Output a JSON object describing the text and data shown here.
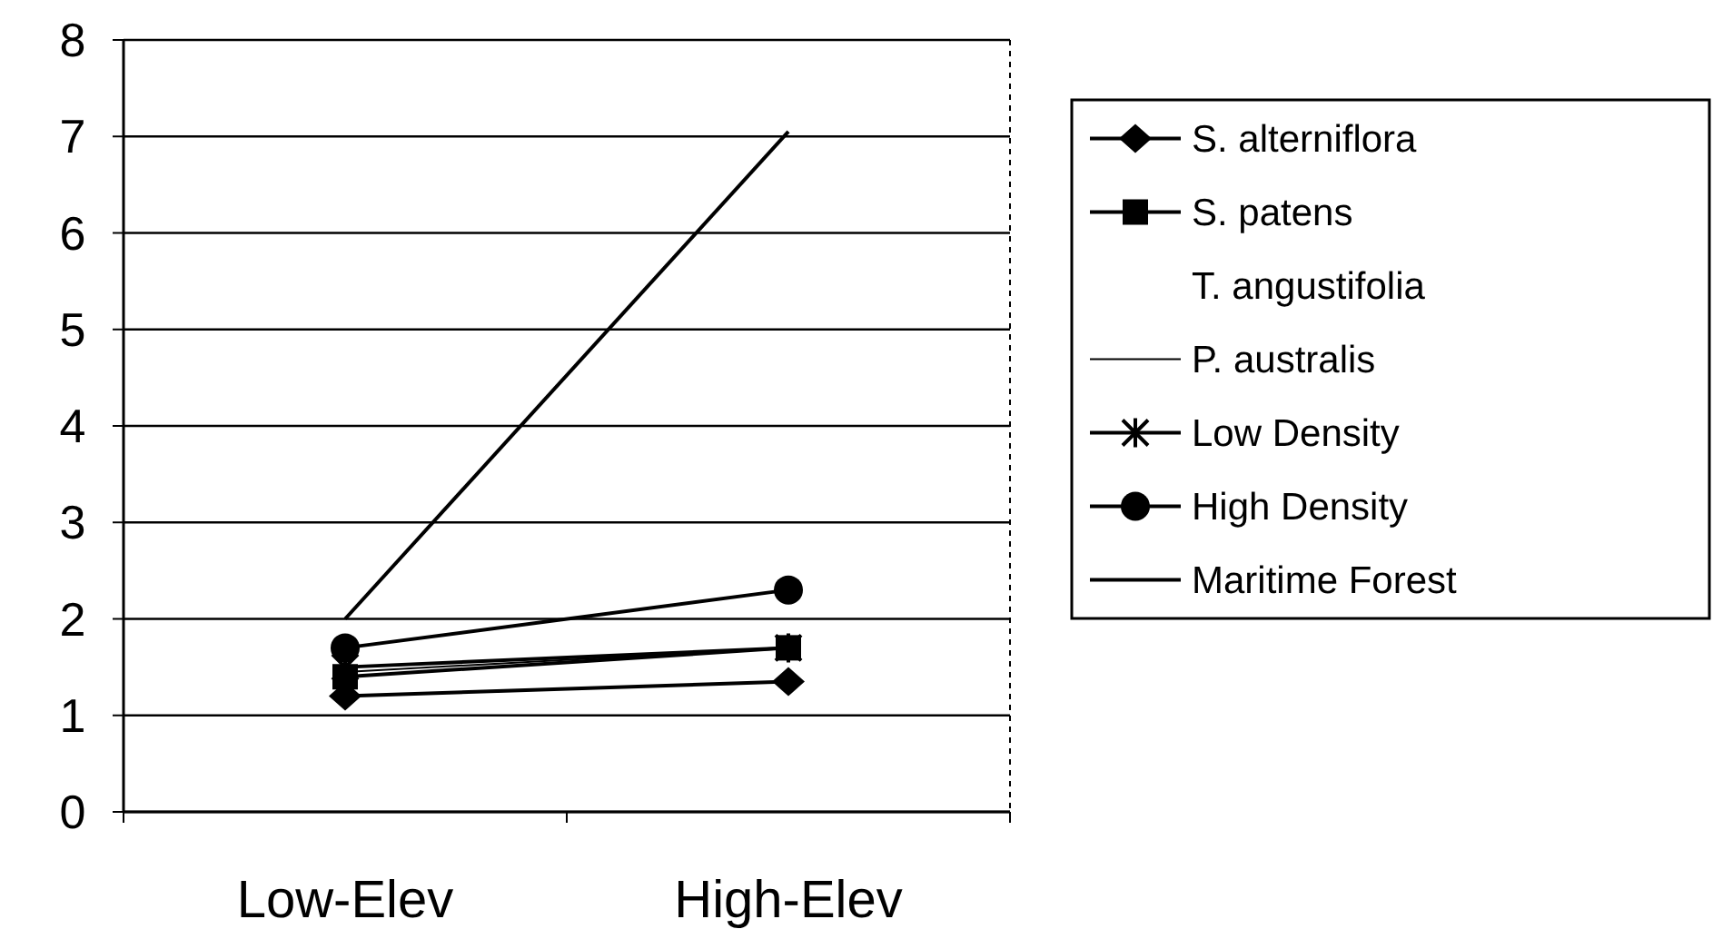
{
  "chart_data": {
    "type": "line",
    "categories": [
      "Low-Elev",
      "High-Elev"
    ],
    "ylim": [
      0,
      8
    ],
    "yticks": [
      0,
      1,
      2,
      3,
      4,
      5,
      6,
      7,
      8
    ],
    "grid": "y",
    "legend": "right",
    "series": [
      {
        "name": "S. alterniflora",
        "color": "#000000",
        "marker": "diamond",
        "values": [
          1.2,
          1.35
        ]
      },
      {
        "name": "S. patens",
        "color": "#000000",
        "marker": "square",
        "values": [
          1.4,
          1.7
        ]
      },
      {
        "name": "T. angustifolia",
        "values": [
          null,
          null
        ]
      },
      {
        "name": "P. australis",
        "color": "#000000",
        "values": [
          1.45,
          1.7
        ]
      },
      {
        "name": "Low Density",
        "color": "#000000",
        "marker": "cross",
        "values": [
          1.5,
          1.7
        ]
      },
      {
        "name": "High Density",
        "color": "#000000",
        "marker": "circle",
        "values": [
          1.7,
          2.3
        ]
      },
      {
        "name": "Maritime Forest",
        "color": "#000000",
        "marker": "none",
        "values": [
          2.0,
          7.05
        ]
      }
    ]
  }
}
